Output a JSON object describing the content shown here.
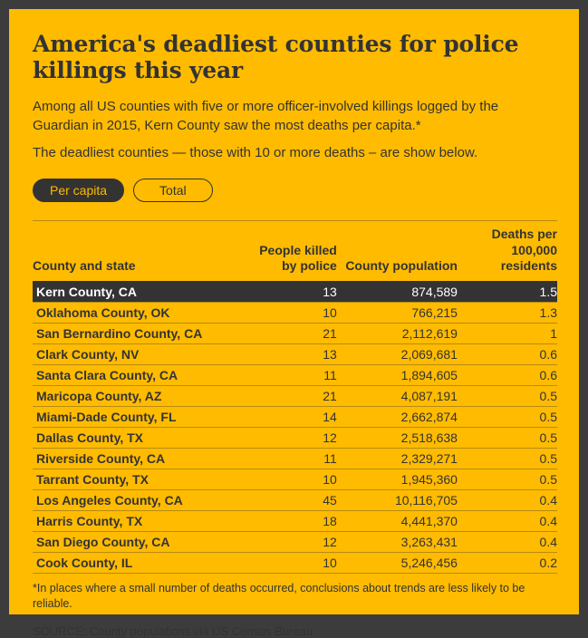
{
  "header": {
    "title": "America's deadliest counties for police killings this year",
    "intro": "Among all US counties with five or more officer-involved killings logged by the Guardian in 2015, Kern County saw the most deaths per capita.*",
    "note": "The deadliest counties — those with 10 or more deaths – are show below."
  },
  "toggles": {
    "per_capita": "Per capita",
    "total": "Total",
    "active": "Per capita"
  },
  "table": {
    "headers": [
      {
        "label": "County and state"
      },
      {
        "label": "People killed\nby police"
      },
      {
        "label": "County population"
      },
      {
        "label": "Deaths per 100,000\nresidents"
      }
    ],
    "rows": [
      {
        "county": "Kern County, CA",
        "killed": "13",
        "population": "874,589",
        "rate": "1.5",
        "highlight": true
      },
      {
        "county": "Oklahoma County, OK",
        "killed": "10",
        "population": "766,215",
        "rate": "1.3",
        "highlight": false
      },
      {
        "county": "San Bernardino County, CA",
        "killed": "21",
        "population": "2,112,619",
        "rate": "1",
        "highlight": false
      },
      {
        "county": "Clark County, NV",
        "killed": "13",
        "population": "2,069,681",
        "rate": "0.6",
        "highlight": false
      },
      {
        "county": "Santa Clara County, CA",
        "killed": "11",
        "population": "1,894,605",
        "rate": "0.6",
        "highlight": false
      },
      {
        "county": "Maricopa County, AZ",
        "killed": "21",
        "population": "4,087,191",
        "rate": "0.5",
        "highlight": false
      },
      {
        "county": "Miami-Dade County, FL",
        "killed": "14",
        "population": "2,662,874",
        "rate": "0.5",
        "highlight": false
      },
      {
        "county": "Dallas County, TX",
        "killed": "12",
        "population": "2,518,638",
        "rate": "0.5",
        "highlight": false
      },
      {
        "county": "Riverside County, CA",
        "killed": "11",
        "population": "2,329,271",
        "rate": "0.5",
        "highlight": false
      },
      {
        "county": "Tarrant County, TX",
        "killed": "10",
        "population": "1,945,360",
        "rate": "0.5",
        "highlight": false
      },
      {
        "county": "Los Angeles County, CA",
        "killed": "45",
        "population": "10,116,705",
        "rate": "0.4",
        "highlight": false
      },
      {
        "county": "Harris County, TX",
        "killed": "18",
        "population": "4,441,370",
        "rate": "0.4",
        "highlight": false
      },
      {
        "county": "San Diego County, CA",
        "killed": "12",
        "population": "3,263,431",
        "rate": "0.4",
        "highlight": false
      },
      {
        "county": "Cook County, IL",
        "killed": "10",
        "population": "5,246,456",
        "rate": "0.2",
        "highlight": false
      }
    ]
  },
  "footer": {
    "footnote": "*In places where a small number of deaths occurred, conclusions about trends are less likely to be reliable.",
    "source": "SOURCE: County populations via US Census Bureau"
  },
  "colors": {
    "bg": "#3c3c3c",
    "panel": "#ffbb00",
    "ink": "#333333",
    "highlight_bg": "#333333",
    "highlight_text": "#ffffff",
    "divider": "#b78b12"
  },
  "chart_data": {
    "type": "table",
    "title": "America's deadliest counties for police killings this year",
    "columns": [
      "County and state",
      "People killed by police",
      "County population",
      "Deaths per 100,000 residents"
    ],
    "rows": [
      [
        "Kern County, CA",
        13,
        874589,
        1.5
      ],
      [
        "Oklahoma County, OK",
        10,
        766215,
        1.3
      ],
      [
        "San Bernardino County, CA",
        21,
        2112619,
        1.0
      ],
      [
        "Clark County, NV",
        13,
        2069681,
        0.6
      ],
      [
        "Santa Clara County, CA",
        11,
        1894605,
        0.6
      ],
      [
        "Maricopa County, AZ",
        21,
        4087191,
        0.5
      ],
      [
        "Miami-Dade County, FL",
        14,
        2662874,
        0.5
      ],
      [
        "Dallas County, TX",
        12,
        2518638,
        0.5
      ],
      [
        "Riverside County, CA",
        11,
        2329271,
        0.5
      ],
      [
        "Tarrant County, TX",
        10,
        1945360,
        0.5
      ],
      [
        "Los Angeles County, CA",
        45,
        10116705,
        0.4
      ],
      [
        "Harris County, TX",
        18,
        4441370,
        0.4
      ],
      [
        "San Diego County, CA",
        12,
        3263431,
        0.4
      ],
      [
        "Cook County, IL",
        10,
        5246456,
        0.2
      ]
    ],
    "highlighted_row": "Kern County, CA",
    "sort": "Deaths per 100,000 residents, descending"
  }
}
